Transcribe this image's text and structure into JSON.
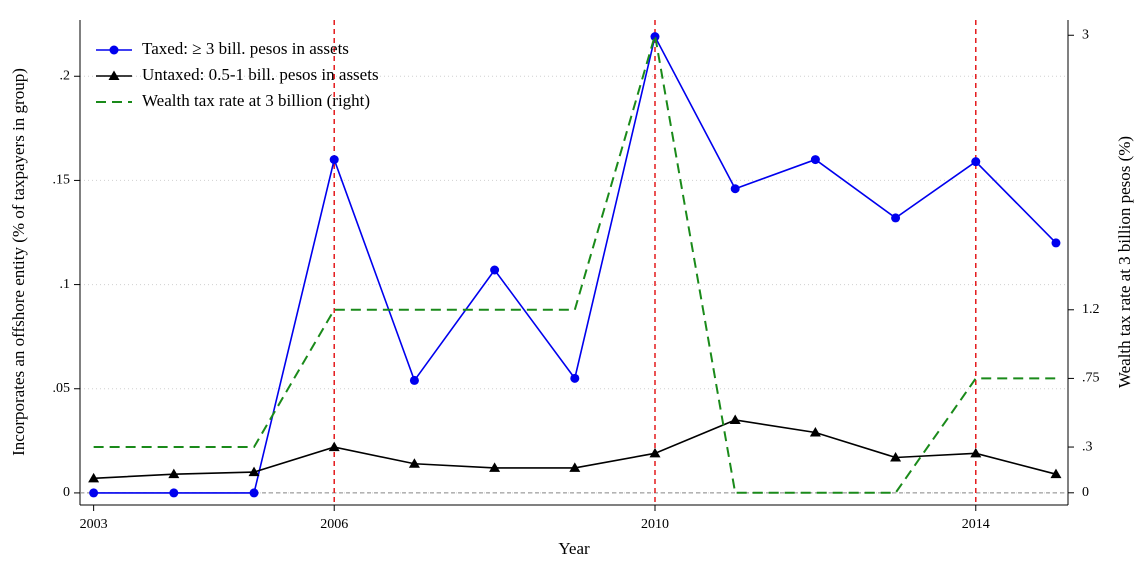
{
  "chart_data": {
    "type": "line",
    "x": [
      2003,
      2004,
      2005,
      2006,
      2007,
      2008,
      2009,
      2010,
      2011,
      2012,
      2013,
      2014,
      2015
    ],
    "xlabel": "Year",
    "ylabel": "Incorporates an offshore entity (% of taxpayers in group)",
    "y2label": "Wealth tax rate at 3 billion pesos (%)",
    "xlim": [
      2002.83,
      2015.15
    ],
    "xticks": [
      2003,
      2006,
      2010,
      2014
    ],
    "ylim": [
      -0.0058,
      0.227
    ],
    "yticks": [
      0,
      {
        "value": 0.05,
        "label": ".05"
      },
      {
        "value": 0.1,
        "label": ".1"
      },
      {
        "value": 0.15,
        "label": ".15"
      },
      {
        "value": 0.2,
        "label": ".2"
      }
    ],
    "y2lim": [
      -0.08,
      3.1
    ],
    "y2ticks": [
      0,
      {
        "value": 0.3,
        "label": ".3"
      },
      {
        "value": 0.75,
        "label": ".75"
      },
      1.2,
      3
    ],
    "grid": true,
    "legend": "upper left",
    "vlines": [
      2006,
      2010,
      2014
    ],
    "vline_color": "#e41a1c",
    "series": [
      {
        "name": "Taxed: ≥ 3 bill. pesos in assets",
        "color": "#0000ee",
        "marker": "circle",
        "values": [
          0,
          0,
          0,
          0.16,
          0.054,
          0.107,
          0.055,
          0.219,
          0.146,
          0.16,
          0.132,
          0.159,
          0.12
        ]
      },
      {
        "name": "Untaxed: 0.5-1 bill. pesos in assets",
        "color": "#000000",
        "marker": "triangle",
        "values": [
          0.007,
          0.009,
          0.01,
          0.022,
          0.014,
          0.012,
          0.012,
          0.019,
          0.035,
          0.029,
          0.017,
          0.019,
          0.009
        ]
      },
      {
        "name": "Wealth tax rate at 3 billion (right)",
        "color": "#1a8a1a",
        "dash": true,
        "axis": "y2",
        "values": [
          0.3,
          0.3,
          0.3,
          1.2,
          1.2,
          1.2,
          1.2,
          3,
          0,
          0,
          0,
          0.75,
          0.75
        ]
      }
    ]
  }
}
